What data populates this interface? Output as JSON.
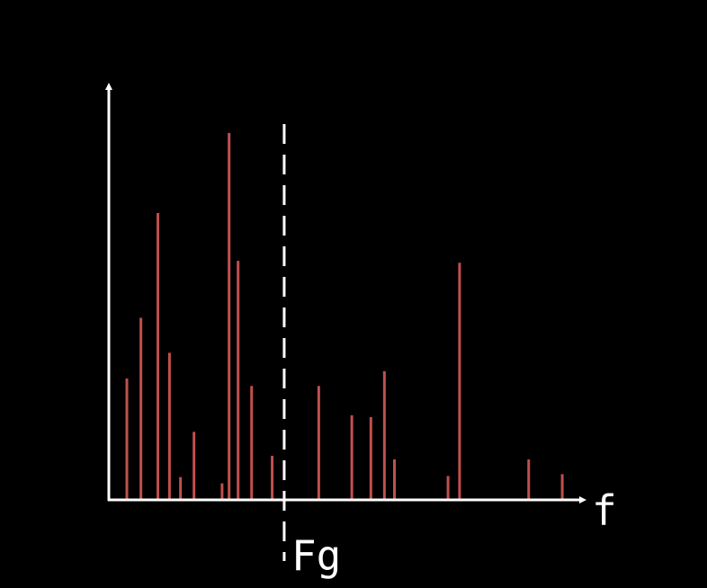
{
  "chart_data": {
    "type": "bar",
    "title": "",
    "xlabel": "f",
    "ylabel": "",
    "x_axis_label": "f",
    "cutoff_label": "Fg",
    "cutoff_x": 0.35,
    "xlim": [
      0,
      1
    ],
    "ylim": [
      0,
      1
    ],
    "grid": false,
    "legend": "none",
    "colors": {
      "background": "#000000",
      "axis": "#ffffff",
      "bar": "#c0504d",
      "cutoff_line": "#ffffff"
    },
    "series": [
      {
        "values": [
          {
            "x": 0.036,
            "y": 0.33
          },
          {
            "x": 0.064,
            "y": 0.495
          },
          {
            "x": 0.098,
            "y": 0.78
          },
          {
            "x": 0.121,
            "y": 0.4
          },
          {
            "x": 0.143,
            "y": 0.062
          },
          {
            "x": 0.17,
            "y": 0.185
          },
          {
            "x": 0.226,
            "y": 0.045
          },
          {
            "x": 0.24,
            "y": 0.998
          },
          {
            "x": 0.258,
            "y": 0.65
          },
          {
            "x": 0.285,
            "y": 0.31
          },
          {
            "x": 0.326,
            "y": 0.12
          },
          {
            "x": 0.419,
            "y": 0.31
          },
          {
            "x": 0.485,
            "y": 0.23
          },
          {
            "x": 0.523,
            "y": 0.225
          },
          {
            "x": 0.55,
            "y": 0.35
          },
          {
            "x": 0.57,
            "y": 0.11
          },
          {
            "x": 0.677,
            "y": 0.065
          },
          {
            "x": 0.7,
            "y": 0.645
          },
          {
            "x": 0.838,
            "y": 0.11
          },
          {
            "x": 0.905,
            "y": 0.07
          }
        ]
      }
    ]
  }
}
